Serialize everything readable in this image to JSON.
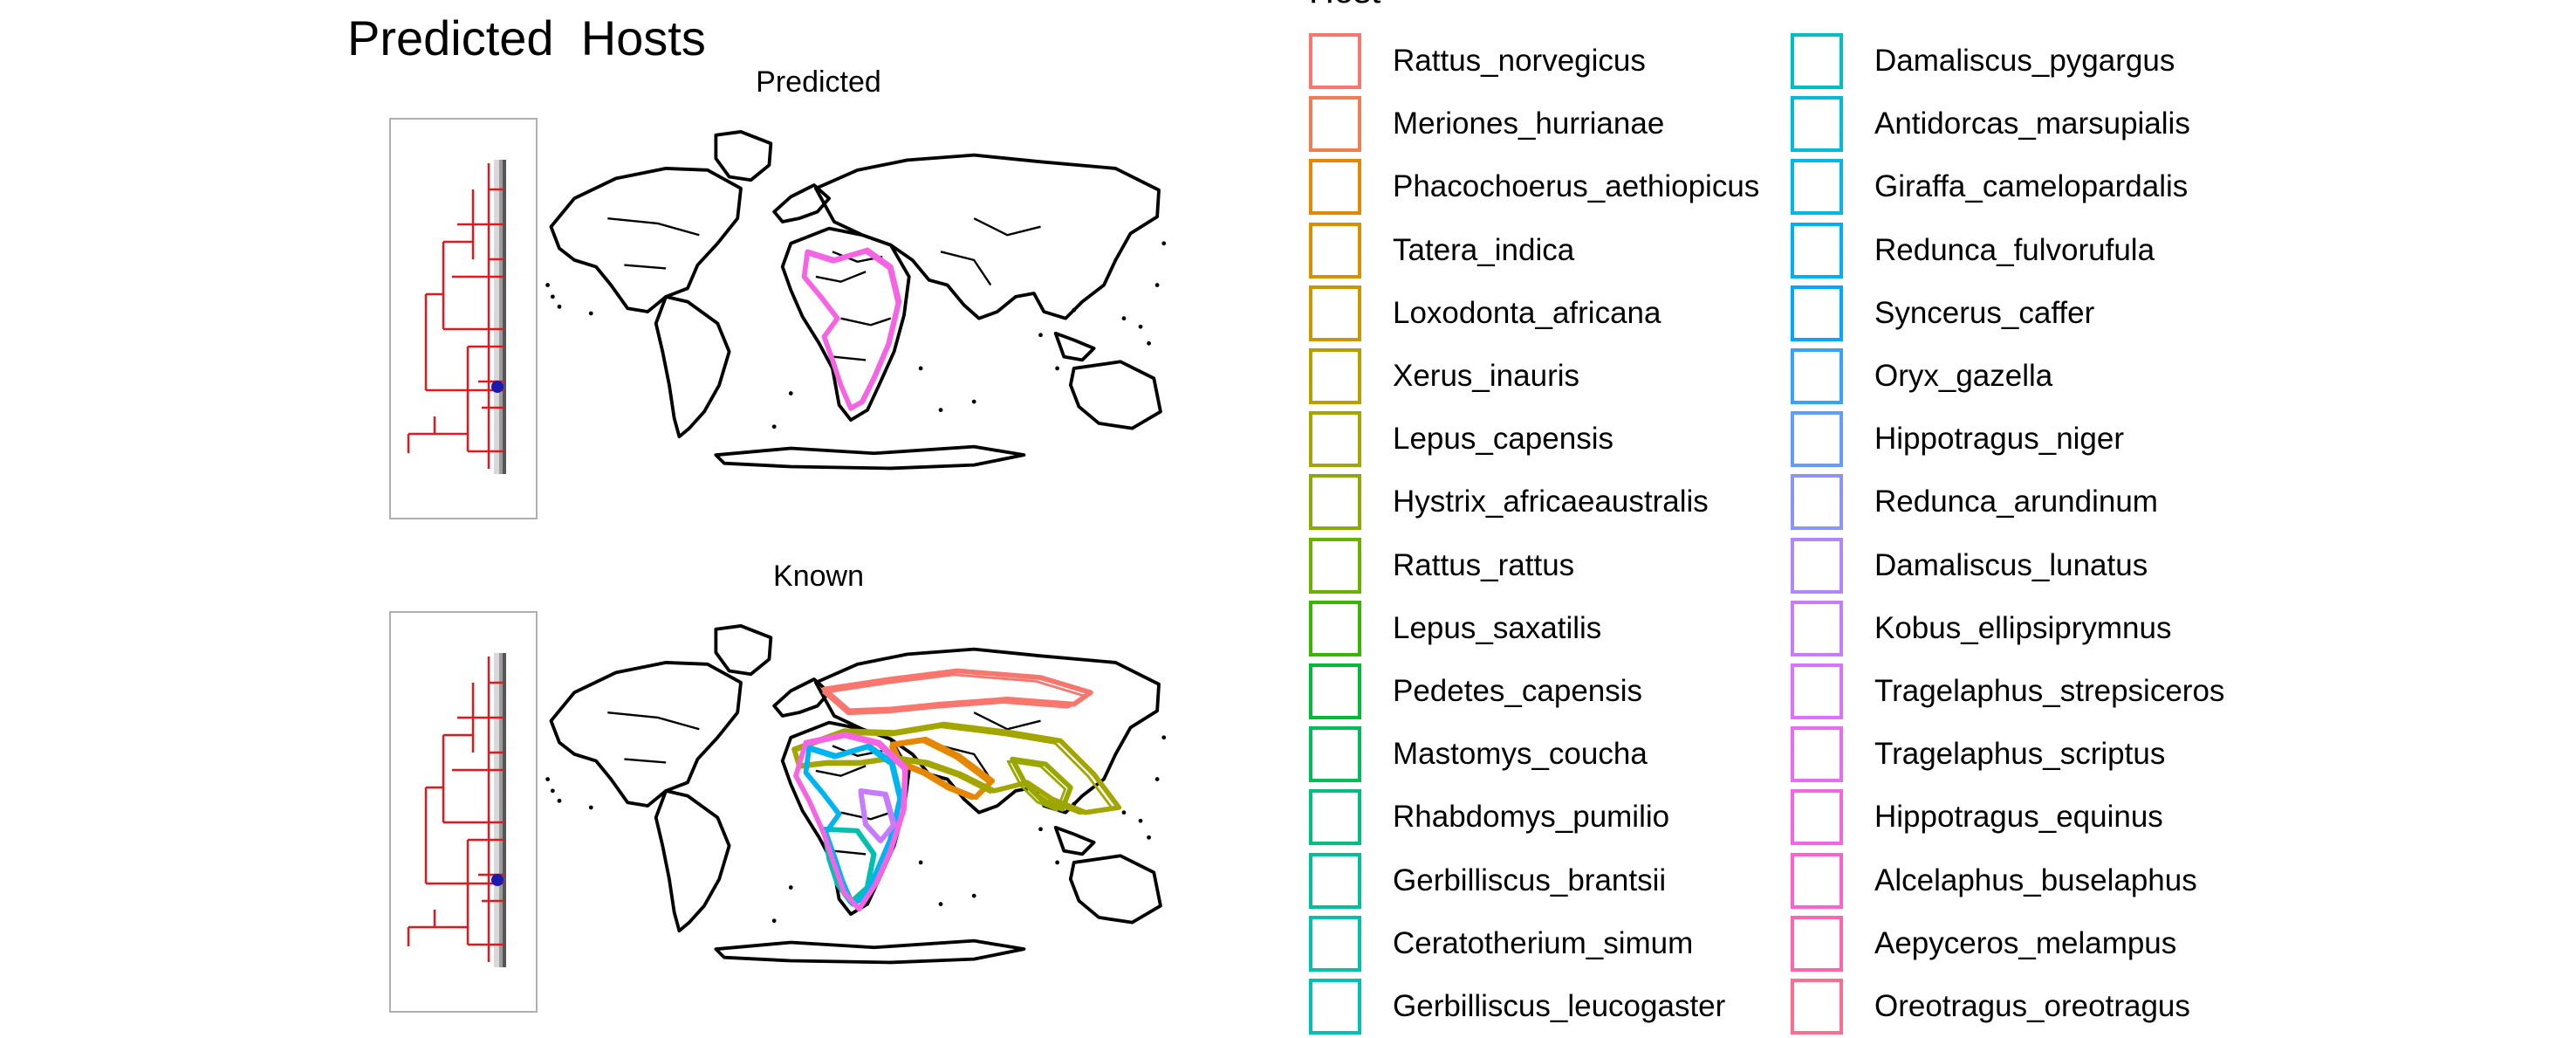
{
  "title": "Predicted  Hosts",
  "chart_data": [
    {
      "type": "map",
      "title": "Predicted",
      "legend_placement": "right",
      "series": [
        {
          "name": "Alcelaphus_buselaphus",
          "region": "sub-Saharan Africa",
          "color": "#f564e3"
        }
      ]
    },
    {
      "type": "map",
      "title": "Known",
      "legend_placement": "right",
      "series": [
        {
          "name": "Rattus_norvegicus",
          "region": "northern Eurasia",
          "color": "#f8766d"
        },
        {
          "name": "Phacochoerus_aethiopicus",
          "region": "Middle East / South Asia",
          "color": "#e58700"
        },
        {
          "name": "Hystrix_africaeaustralis",
          "region": "North Africa, Arabia, Asia",
          "color": "#a3a500"
        },
        {
          "name": "Rattus_rattus",
          "region": "Asia",
          "color": "#99a800"
        },
        {
          "name": "Gerbilliscus_leucogaster",
          "region": "southern Africa",
          "color": "#00c0af"
        },
        {
          "name": "Syncerus_caffer",
          "region": "sub-Saharan Africa",
          "color": "#00b4f0"
        },
        {
          "name": "Damaliscus_lunatus",
          "region": "East Africa",
          "color": "#c77cff"
        },
        {
          "name": "Alcelaphus_buselaphus",
          "region": "Africa",
          "color": "#f564e3"
        }
      ]
    }
  ],
  "legend": {
    "title": "Host",
    "items": [
      {
        "label": "Rattus_norvegicus",
        "color": "#f8766d"
      },
      {
        "label": "Meriones_hurrianae",
        "color": "#f07e53"
      },
      {
        "label": "Phacochoerus_aethiopicus",
        "color": "#e58700"
      },
      {
        "label": "Tatera_indica",
        "color": "#d89000"
      },
      {
        "label": "Loxodonta_africana",
        "color": "#c99800"
      },
      {
        "label": "Xerus_inauris",
        "color": "#b79f00"
      },
      {
        "label": "Lepus_capensis",
        "color": "#a3a500"
      },
      {
        "label": "Hystrix_africaeaustralis",
        "color": "#8bab00"
      },
      {
        "label": "Rattus_rattus",
        "color": "#6bb100"
      },
      {
        "label": "Lepus_saxatilis",
        "color": "#39b600"
      },
      {
        "label": "Pedetes_capensis",
        "color": "#00ba38"
      },
      {
        "label": "Mastomys_coucha",
        "color": "#00bc59"
      },
      {
        "label": "Rhabdomys_pumilio",
        "color": "#00bf7d"
      },
      {
        "label": "Gerbilliscus_brantsii",
        "color": "#00c097"
      },
      {
        "label": "Ceratotherium_simum",
        "color": "#00c1a9"
      },
      {
        "label": "Gerbilliscus_leucogaster",
        "color": "#00c0b8"
      },
      {
        "label": "Damaliscus_pygargus",
        "color": "#00bfc4"
      },
      {
        "label": "Antidorcas_marsupialis",
        "color": "#00bcd8"
      },
      {
        "label": "Giraffa_camelopardalis",
        "color": "#00b8e7"
      },
      {
        "label": "Redunca_fulvorufula",
        "color": "#00b0f6"
      },
      {
        "label": "Syncerus_caffer",
        "color": "#00a9ff"
      },
      {
        "label": "Oryx_gazella",
        "color": "#35a2ff"
      },
      {
        "label": "Hippotragus_niger",
        "color": "#619cff"
      },
      {
        "label": "Redunca_arundinum",
        "color": "#8b93ff"
      },
      {
        "label": "Damaliscus_lunatus",
        "color": "#ae87ff"
      },
      {
        "label": "Kobus_ellipsiprymnus",
        "color": "#c77cff"
      },
      {
        "label": "Tragelaphus_strepsiceros",
        "color": "#db72fb"
      },
      {
        "label": "Tragelaphus_scriptus",
        "color": "#e76bf3"
      },
      {
        "label": "Hippotragus_equinus",
        "color": "#f564e3"
      },
      {
        "label": "Alcelaphus_buselaphus",
        "color": "#fd61d1"
      },
      {
        "label": "Aepyceros_melampus",
        "color": "#ff64b0"
      },
      {
        "label": "Oreotragus_oreotragus",
        "color": "#ff6c91"
      }
    ]
  }
}
